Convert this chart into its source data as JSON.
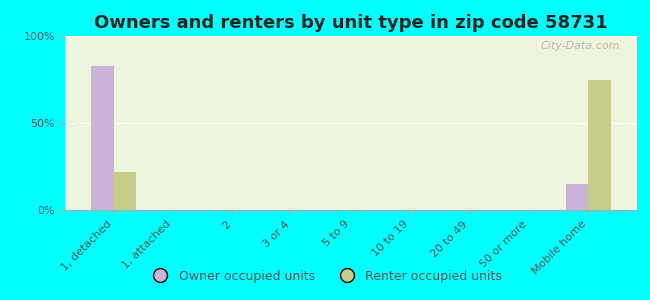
{
  "title": "Owners and renters by unit type in zip code 58731",
  "categories": [
    "1, detached",
    "1, attached",
    "2",
    "3 or 4",
    "5 to 9",
    "10 to 19",
    "20 to 49",
    "50 or more",
    "Mobile home"
  ],
  "owner_values": [
    83,
    0,
    0,
    0,
    0,
    0,
    0,
    0,
    15
  ],
  "renter_values": [
    22,
    0,
    0,
    0,
    0,
    0,
    0,
    0,
    75
  ],
  "owner_color": "#c9b3d9",
  "renter_color": "#c8cc8a",
  "background_color": "#00ffff",
  "plot_bg_color": "#eef5de",
  "ylim": [
    0,
    100
  ],
  "yticks": [
    0,
    50,
    100
  ],
  "bar_width": 0.38,
  "title_fontsize": 13,
  "tick_fontsize": 8,
  "legend_labels": [
    "Owner occupied units",
    "Renter occupied units"
  ],
  "watermark": "City-Data.com"
}
